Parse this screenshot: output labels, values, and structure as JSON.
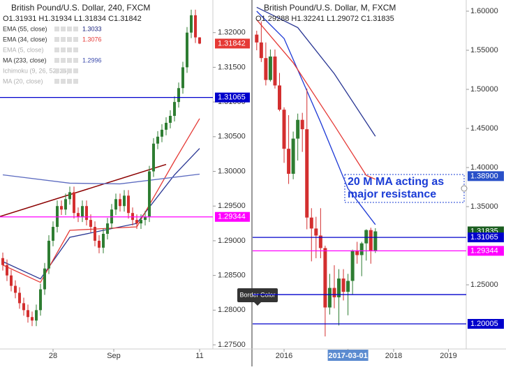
{
  "chart_data": [
    {
      "type": "candlestick",
      "title": "British Pound/U.S. Dollar, 240, FXCM",
      "ohlc_text": "O1.31931 H1.31934 L1.31834 C1.31842",
      "indicators": [
        {
          "name": "EMA (55, close)",
          "value": 1.3033,
          "color": "#1a237e"
        },
        {
          "name": "EMA (34, close)",
          "value": 1.3076,
          "color": "#e53935"
        },
        {
          "name": "EMA (5, close)",
          "color": "#b0b0b0"
        },
        {
          "name": "MA (233, close)",
          "value": 1.2996,
          "color": "#3949ab"
        },
        {
          "name": "Ichimoku (9, 26, 52, 26)",
          "color": "#b0b0b0"
        },
        {
          "name": "MA (20, close)",
          "color": "#b0b0b0"
        }
      ],
      "up_color": "#2e7d32",
      "down_color": "#d32f2f",
      "open": [
        1.2875,
        1.2865,
        1.285,
        1.2835,
        1.2825,
        1.281,
        1.28,
        1.279,
        1.2785,
        1.28,
        1.283,
        1.286,
        1.29,
        1.292,
        1.295,
        1.2945,
        1.296,
        1.297,
        1.294,
        1.2935,
        1.295,
        1.293,
        1.292,
        1.29,
        1.289,
        1.291,
        1.2925,
        1.2945,
        1.296,
        1.295,
        1.2965,
        1.294,
        1.293,
        1.2925,
        1.293,
        1.2935,
        1.3,
        1.304,
        1.305,
        1.306,
        1.307,
        1.308,
        1.31,
        1.312,
        1.315,
        1.32,
        1.3225,
        1.31931
      ],
      "high": [
        1.2883,
        1.2873,
        1.2858,
        1.2843,
        1.2833,
        1.2818,
        1.2808,
        1.2798,
        1.2808,
        1.2838,
        1.2868,
        1.2908,
        1.2928,
        1.2958,
        1.2958,
        1.2968,
        1.2978,
        1.2978,
        1.2948,
        1.2958,
        1.2958,
        1.2938,
        1.2928,
        1.2908,
        1.2918,
        1.2933,
        1.2953,
        1.2968,
        1.2968,
        1.2973,
        1.2973,
        1.2948,
        1.2938,
        1.2938,
        1.2943,
        1.3008,
        1.3048,
        1.3058,
        1.3068,
        1.3078,
        1.3088,
        1.3108,
        1.3128,
        1.3158,
        1.3208,
        1.3233,
        1.3233,
        1.31934
      ],
      "low": [
        1.2857,
        1.2842,
        1.2827,
        1.2817,
        1.2802,
        1.2792,
        1.2782,
        1.2777,
        1.2777,
        1.2792,
        1.2822,
        1.2852,
        1.2892,
        1.2912,
        1.2937,
        1.2937,
        1.2952,
        1.2932,
        1.2927,
        1.2927,
        1.2922,
        1.2912,
        1.2892,
        1.2882,
        1.2882,
        1.2902,
        1.2917,
        1.2937,
        1.2942,
        1.2942,
        1.2932,
        1.2922,
        1.2917,
        1.2917,
        1.2922,
        1.2927,
        1.2992,
        1.3032,
        1.3042,
        1.3052,
        1.3062,
        1.3072,
        1.3092,
        1.3112,
        1.3142,
        1.3192,
        1.3185,
        1.31834
      ],
      "close": [
        1.2865,
        1.285,
        1.2835,
        1.2825,
        1.281,
        1.28,
        1.279,
        1.2785,
        1.28,
        1.283,
        1.286,
        1.29,
        1.292,
        1.295,
        1.2945,
        1.296,
        1.297,
        1.294,
        1.2935,
        1.295,
        1.293,
        1.292,
        1.29,
        1.289,
        1.291,
        1.2925,
        1.2945,
        1.296,
        1.295,
        1.2965,
        1.294,
        1.293,
        1.2925,
        1.293,
        1.2935,
        1.3,
        1.304,
        1.305,
        1.306,
        1.307,
        1.308,
        1.31,
        1.312,
        1.315,
        1.32,
        1.3225,
        1.31931,
        1.31842
      ],
      "lines": [
        {
          "color": "#283593",
          "x": [
            0,
            9,
            16,
            32,
            41,
            47
          ],
          "values": [
            1.287,
            1.2845,
            1.2905,
            1.2925,
            1.2995,
            1.3033
          ]
        },
        {
          "color": "#e53935",
          "x": [
            0,
            9,
            16,
            32,
            41,
            47
          ],
          "values": [
            1.2865,
            1.284,
            1.2915,
            1.292,
            1.3015,
            1.3076
          ]
        },
        {
          "color": "#5c6bc0",
          "x": [
            0,
            16,
            28,
            47
          ],
          "values": [
            1.2995,
            1.2983,
            1.2982,
            1.2996
          ]
        }
      ],
      "trendline": {
        "color": "#8b0000",
        "x": [
          0,
          39
        ],
        "values": [
          1.2935,
          1.301
        ]
      },
      "hlines": [
        {
          "value": 1.31065,
          "color": "#0000cc"
        },
        {
          "value": 1.29344,
          "color": "#ff00ff"
        }
      ],
      "badges": [
        {
          "value": 1.31842,
          "color": "#e53935"
        },
        {
          "value": 1.31065,
          "color": "#0000cc"
        },
        {
          "value": 1.29344,
          "color": "#ff00ff"
        }
      ],
      "ylim": [
        1.2744,
        1.3247
      ],
      "yticks": [
        {
          "value": 1.275,
          "label": "1.27500"
        },
        {
          "value": 1.28,
          "label": "1.28000"
        },
        {
          "value": 1.285,
          "label": "1.28500"
        },
        {
          "value": 1.29,
          "label": "1.29000"
        },
        {
          "value": 1.295,
          "label": "1.29500"
        },
        {
          "value": 1.3,
          "label": "1.30000"
        },
        {
          "value": 1.305,
          "label": "1.30500"
        },
        {
          "value": 1.31,
          "label": "1.31000"
        },
        {
          "value": 1.315,
          "label": "1.31500"
        },
        {
          "value": 1.32,
          "label": "1.32000"
        }
      ],
      "xticks": [
        {
          "value": 12,
          "label": "28"
        },
        {
          "value": 26.5,
          "label": "Sep"
        },
        {
          "value": 47,
          "label": "11"
        }
      ]
    },
    {
      "type": "candlestick",
      "title": "British Pound/U.S. Dollar, M, FXCM",
      "ohlc_text": "O1.29288 H1.32241 L1.29072 C1.31835",
      "up_color": "#2e7d32",
      "down_color": "#d32f2f",
      "open": [
        1.57,
        1.56,
        1.54,
        1.512,
        1.542,
        1.505,
        1.474,
        1.424,
        1.392,
        1.437,
        1.461,
        1.449,
        1.336,
        1.322,
        1.313,
        1.297,
        1.221,
        1.246,
        1.234,
        1.258,
        1.241,
        1.255,
        1.294,
        1.288,
        1.303,
        1.32,
        1.29288
      ],
      "high": [
        1.575,
        1.587,
        1.56,
        1.551,
        1.551,
        1.521,
        1.477,
        1.467,
        1.446,
        1.469,
        1.47,
        1.501,
        1.348,
        1.337,
        1.348,
        1.3,
        1.264,
        1.275,
        1.27,
        1.27,
        1.264,
        1.295,
        1.305,
        1.305,
        1.321,
        1.323,
        1.32241
      ],
      "low": [
        1.55,
        1.535,
        1.505,
        1.51,
        1.501,
        1.472,
        1.406,
        1.379,
        1.385,
        1.409,
        1.42,
        1.321,
        1.28,
        1.284,
        1.284,
        1.184,
        1.212,
        1.22,
        1.198,
        1.23,
        1.211,
        1.238,
        1.277,
        1.261,
        1.281,
        1.277,
        1.29072
      ],
      "close": [
        1.56,
        1.54,
        1.512,
        1.542,
        1.505,
        1.474,
        1.424,
        1.392,
        1.437,
        1.461,
        1.449,
        1.336,
        1.322,
        1.313,
        1.297,
        1.221,
        1.246,
        1.234,
        1.258,
        1.241,
        1.255,
        1.294,
        1.288,
        1.303,
        1.32,
        1.29288,
        1.31835
      ],
      "lines": [
        {
          "color": "#1e3ad6",
          "x": [
            0,
            6,
            14,
            20,
            26
          ],
          "values": [
            1.6,
            1.565,
            1.458,
            1.373,
            1.327
          ]
        },
        {
          "color": "#e53935",
          "x": [
            0,
            8,
            17,
            24,
            26
          ],
          "values": [
            1.589,
            1.534,
            1.454,
            1.39,
            1.385
          ]
        },
        {
          "color": "#283593",
          "x": [
            0,
            9,
            17,
            26
          ],
          "values": [
            1.605,
            1.579,
            1.52,
            1.44
          ]
        }
      ],
      "hlines": [
        {
          "value": 1.31065,
          "color": "#0000cc"
        },
        {
          "value": 1.29344,
          "color": "#ff00ff"
        },
        {
          "value": 1.2375,
          "color": "#0000cc"
        },
        {
          "value": 1.20005,
          "color": "#0000cc"
        }
      ],
      "badges": [
        {
          "value": 1.389,
          "label": "1.38900",
          "color": "#2950c8"
        },
        {
          "value": 1.31835,
          "color": "#1b5e20"
        },
        {
          "value": 1.31065,
          "color": "#0000cc"
        },
        {
          "value": 1.29344,
          "color": "#ff00ff"
        },
        {
          "value": 1.20005,
          "color": "#0000cc"
        }
      ],
      "annotation": [
        "20 M MA acting as",
        "major resistance"
      ],
      "tooltip": "Border Color",
      "ylim": [
        1.1679,
        1.6143
      ],
      "yticks": [
        {
          "value": 1.25,
          "label": "1.25000"
        },
        {
          "value": 1.35,
          "label": "1.35000"
        },
        {
          "value": 1.4,
          "label": "1.40000"
        },
        {
          "value": 1.45,
          "label": "1.45000"
        },
        {
          "value": 1.5,
          "label": "1.50000"
        },
        {
          "value": 1.55,
          "label": "1.55000"
        },
        {
          "value": 1.6,
          "label": "1.60000"
        }
      ],
      "xticks": [
        {
          "value": 6,
          "label": "2016"
        },
        {
          "value": 20,
          "label": "2017-03-01"
        },
        {
          "value": 30,
          "label": "2018"
        },
        {
          "value": 42,
          "label": "2019"
        }
      ]
    }
  ]
}
